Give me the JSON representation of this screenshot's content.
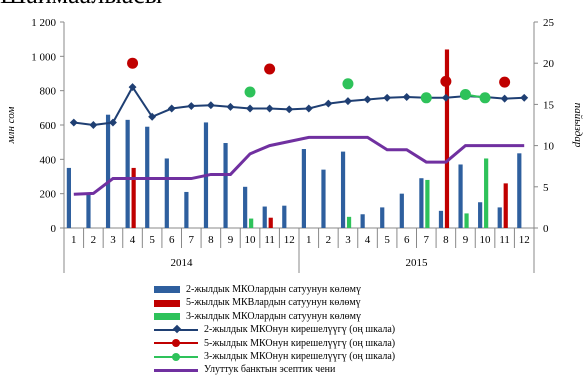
{
  "title": "Шаймаалыасы",
  "chart_data": {
    "type": "bar",
    "y_left": {
      "label": "млн сом",
      "ticks": [
        "0",
        "200",
        "400",
        "600",
        "800",
        "1 000",
        "1 200"
      ],
      "range": [
        0,
        1200
      ]
    },
    "y_right": {
      "label": "пайыздар",
      "ticks": [
        "0",
        "5",
        "10",
        "15",
        "20",
        "25"
      ],
      "range": [
        0,
        25
      ]
    },
    "months": [
      "1",
      "2",
      "3",
      "4",
      "5",
      "6",
      "7",
      "8",
      "9",
      "10",
      "11",
      "12",
      "1",
      "2",
      "3",
      "4",
      "5",
      "6",
      "7",
      "8",
      "9",
      "10",
      "11",
      "12"
    ],
    "years": [
      "2014",
      "2015"
    ],
    "series": [
      {
        "name": "2-жылдык МКОлардын сатуунун көлөмү",
        "type": "bar",
        "axis": "left",
        "color": "#2e5f9e",
        "values": [
          350,
          200,
          660,
          630,
          590,
          405,
          210,
          615,
          495,
          240,
          125,
          130,
          460,
          340,
          445,
          80,
          120,
          200,
          290,
          100,
          370,
          150,
          120,
          435
        ]
      },
      {
        "name": "5-жылдык МКВлардын сатуунун көлөмү",
        "type": "bar",
        "axis": "left",
        "color": "#c00000",
        "values": [
          null,
          null,
          null,
          350,
          null,
          null,
          null,
          null,
          null,
          null,
          60,
          null,
          null,
          null,
          null,
          null,
          null,
          null,
          null,
          1040,
          null,
          null,
          260,
          null
        ]
      },
      {
        "name": "3-жылдык МКОлардын сатуунун көлөмү",
        "type": "bar",
        "axis": "left",
        "color": "#2ec25a",
        "values": [
          null,
          null,
          null,
          null,
          null,
          null,
          null,
          null,
          null,
          55,
          null,
          null,
          null,
          null,
          65,
          null,
          null,
          null,
          280,
          null,
          85,
          405,
          null,
          null
        ]
      },
      {
        "name": "2-жылдык МКОнун кирешелүүгү (оң шкала)",
        "type": "line",
        "axis": "right",
        "color": "#1f3f73",
        "marker": "diamond",
        "values": [
          12.8,
          12.5,
          12.8,
          17.1,
          13.5,
          14.5,
          14.8,
          14.9,
          14.7,
          14.5,
          14.5,
          14.4,
          14.5,
          15.1,
          15.4,
          15.6,
          15.8,
          15.9,
          15.8,
          15.8,
          16.0,
          15.9,
          15.7,
          15.8
        ]
      },
      {
        "name": "5-жылдык МКОнун кирешелүүгү (оң шкала)",
        "type": "line",
        "axis": "right",
        "color": "#c00000",
        "marker": "circle",
        "values": [
          null,
          null,
          null,
          20.0,
          null,
          null,
          null,
          null,
          null,
          null,
          19.3,
          null,
          null,
          null,
          null,
          null,
          null,
          null,
          null,
          17.8,
          null,
          null,
          17.7,
          null
        ]
      },
      {
        "name": "3-жылдык МКОнун кирешелүүгү (оң шкала)",
        "type": "line",
        "axis": "right",
        "color": "#2ec25a",
        "marker": "circle",
        "values": [
          null,
          null,
          null,
          null,
          null,
          null,
          null,
          null,
          null,
          16.5,
          null,
          null,
          null,
          null,
          17.5,
          null,
          null,
          null,
          15.8,
          null,
          16.2,
          15.8,
          null,
          null
        ]
      },
      {
        "name": "Улуттук банктын эсептик чени",
        "type": "line",
        "axis": "right",
        "color": "#7030a0",
        "marker": "none",
        "values": [
          4.1,
          4.2,
          6.0,
          6.0,
          6.0,
          6.0,
          6.0,
          6.5,
          6.5,
          9.0,
          10.0,
          10.5,
          11.0,
          11.0,
          11.0,
          11.0,
          9.5,
          9.5,
          8.0,
          8.0,
          10.0,
          10.0,
          10.0,
          10.0
        ]
      }
    ]
  }
}
